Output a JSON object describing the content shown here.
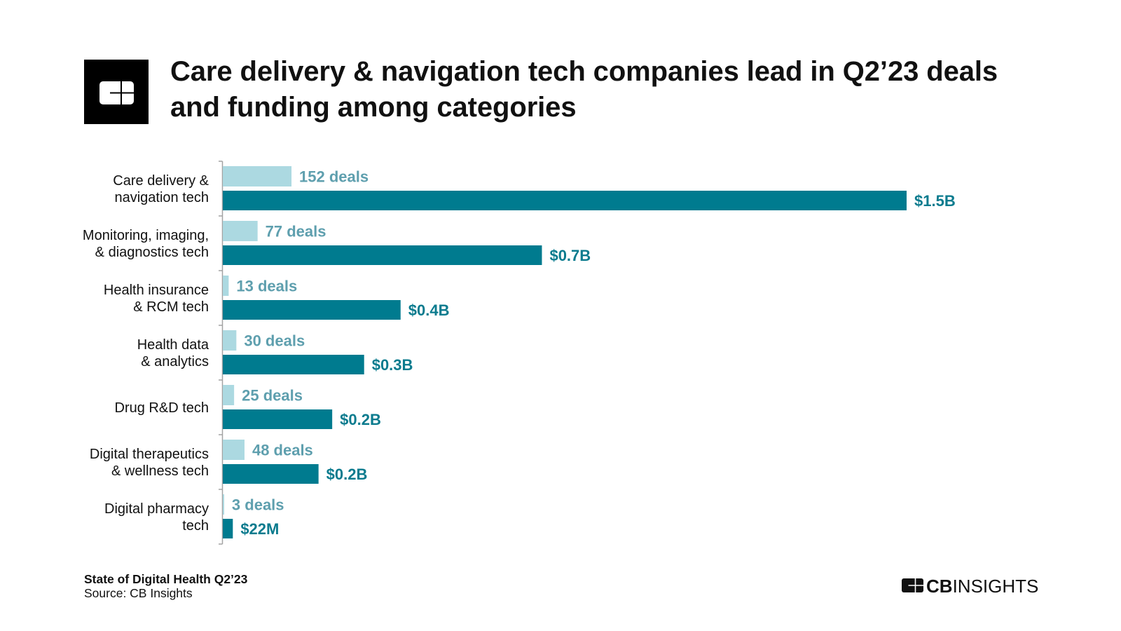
{
  "header": {
    "logo_icon": "cb-insights-logo-icon",
    "title_lines": [
      "Care delivery & navigation tech companies lead in Q2’23 deals",
      "and funding among categories"
    ]
  },
  "footer": {
    "report": "State of Digital Health Q2’23",
    "source": "Source: CB Insights",
    "brand_icon": "cb-insights-logo-icon",
    "brand_bold": "CB",
    "brand_light": "INSIGHTS"
  },
  "colors": {
    "text": "#111111",
    "logo_bg": "#000000",
    "axis": "#a3a3a3",
    "deals_bar": "#acd9e1",
    "deals_label": "#5e9fae",
    "funding_bar": "#007b8f",
    "funding_label": "#0b7b8e"
  },
  "chart_data": {
    "type": "bar",
    "orientation": "horizontal",
    "title": "Care delivery & navigation tech companies lead in Q2’23 deals and funding among categories",
    "categories": [
      "Care delivery & navigation tech",
      "Monitoring, imaging, & diagnostics tech",
      "Health insurance & RCM tech",
      "Health data & analytics",
      "Drug R&D tech",
      "Digital therapeutics & wellness tech",
      "Digital pharmacy tech"
    ],
    "category_label_lines": [
      [
        "Care delivery &",
        "navigation tech"
      ],
      [
        "Monitoring, imaging,",
        "& diagnostics tech"
      ],
      [
        "Health insurance",
        "& RCM tech"
      ],
      [
        "Health data",
        "& analytics"
      ],
      [
        "Drug R&D tech"
      ],
      [
        "Digital therapeutics",
        "& wellness tech"
      ],
      [
        "Digital pharmacy",
        "tech"
      ]
    ],
    "series": [
      {
        "name": "Deals",
        "unit": "deals",
        "values": [
          152,
          77,
          13,
          30,
          25,
          48,
          3
        ],
        "data_labels": [
          "152 deals",
          "77 deals",
          "13 deals",
          "30 deals",
          "25 deals",
          "48 deals",
          "3 deals"
        ],
        "xlim": [
          0,
          1513
        ]
      },
      {
        "name": "Funding",
        "unit": "USD billions",
        "values": [
          1.5,
          0.7,
          0.39,
          0.31,
          0.24,
          0.21,
          0.022
        ],
        "data_labels": [
          "$1.5B",
          "$0.7B",
          "$0.4B",
          "$0.3B",
          "$0.2B",
          "$0.2B",
          "$22M"
        ],
        "xlim": [
          0,
          1.5
        ]
      }
    ],
    "xlabel": "",
    "ylabel": "",
    "x_axis_visible": false,
    "grid": false,
    "legend": "none"
  }
}
